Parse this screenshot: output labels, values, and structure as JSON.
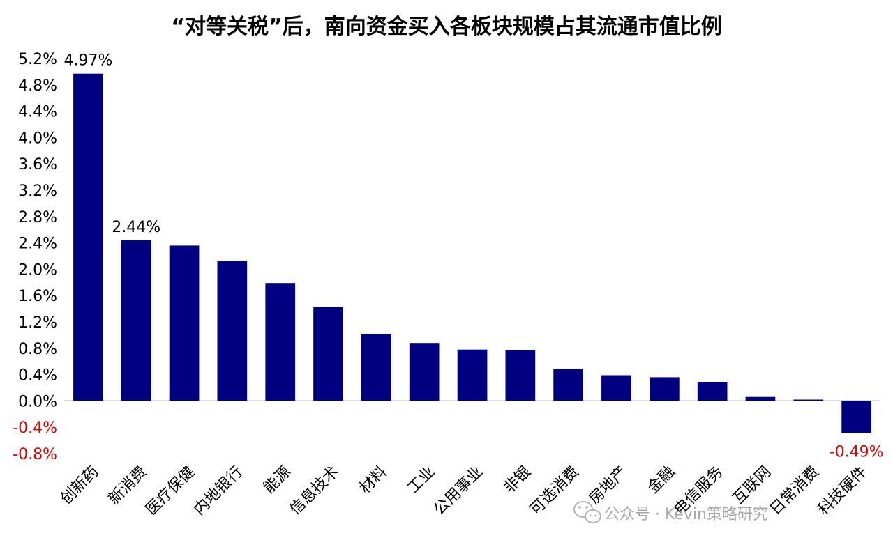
{
  "chart_data": {
    "type": "bar",
    "title": "“对等关税”后，南向资金买入各板块规模占其流通市值比例",
    "xlabel": "",
    "ylabel": "",
    "ylim": [
      -0.8,
      5.2
    ],
    "ytick_step": 0.4,
    "ytick_labels": [
      "5.2%",
      "4.8%",
      "4.4%",
      "4.0%",
      "3.6%",
      "3.2%",
      "2.8%",
      "2.4%",
      "2.0%",
      "1.6%",
      "1.2%",
      "0.8%",
      "0.4%",
      "0.0%",
      "-0.4%",
      "-0.8%"
    ],
    "grid": false,
    "legend": "none",
    "bar_color": "#000080",
    "negative_label_color": "#e00000",
    "categories": [
      "创新药",
      "新消费",
      "医疗保健",
      "内地银行",
      "能源",
      "信息技术",
      "材料",
      "工业",
      "公用事业",
      "非银",
      "可选消费",
      "房地产",
      "金融",
      "电信服务",
      "互联网",
      "日常消费",
      "科技硬件"
    ],
    "values": [
      4.97,
      2.44,
      2.36,
      2.13,
      1.79,
      1.43,
      1.02,
      0.88,
      0.78,
      0.77,
      0.49,
      0.39,
      0.36,
      0.29,
      0.06,
      0.02,
      -0.49
    ],
    "data_labels": [
      {
        "index": 0,
        "text": "4.97%"
      },
      {
        "index": 1,
        "text": "2.44%"
      },
      {
        "index": 16,
        "text": "-0.49%"
      }
    ]
  },
  "watermark": {
    "icon": "wechat-icon",
    "text": "公众号 · Kevin策略研究"
  }
}
